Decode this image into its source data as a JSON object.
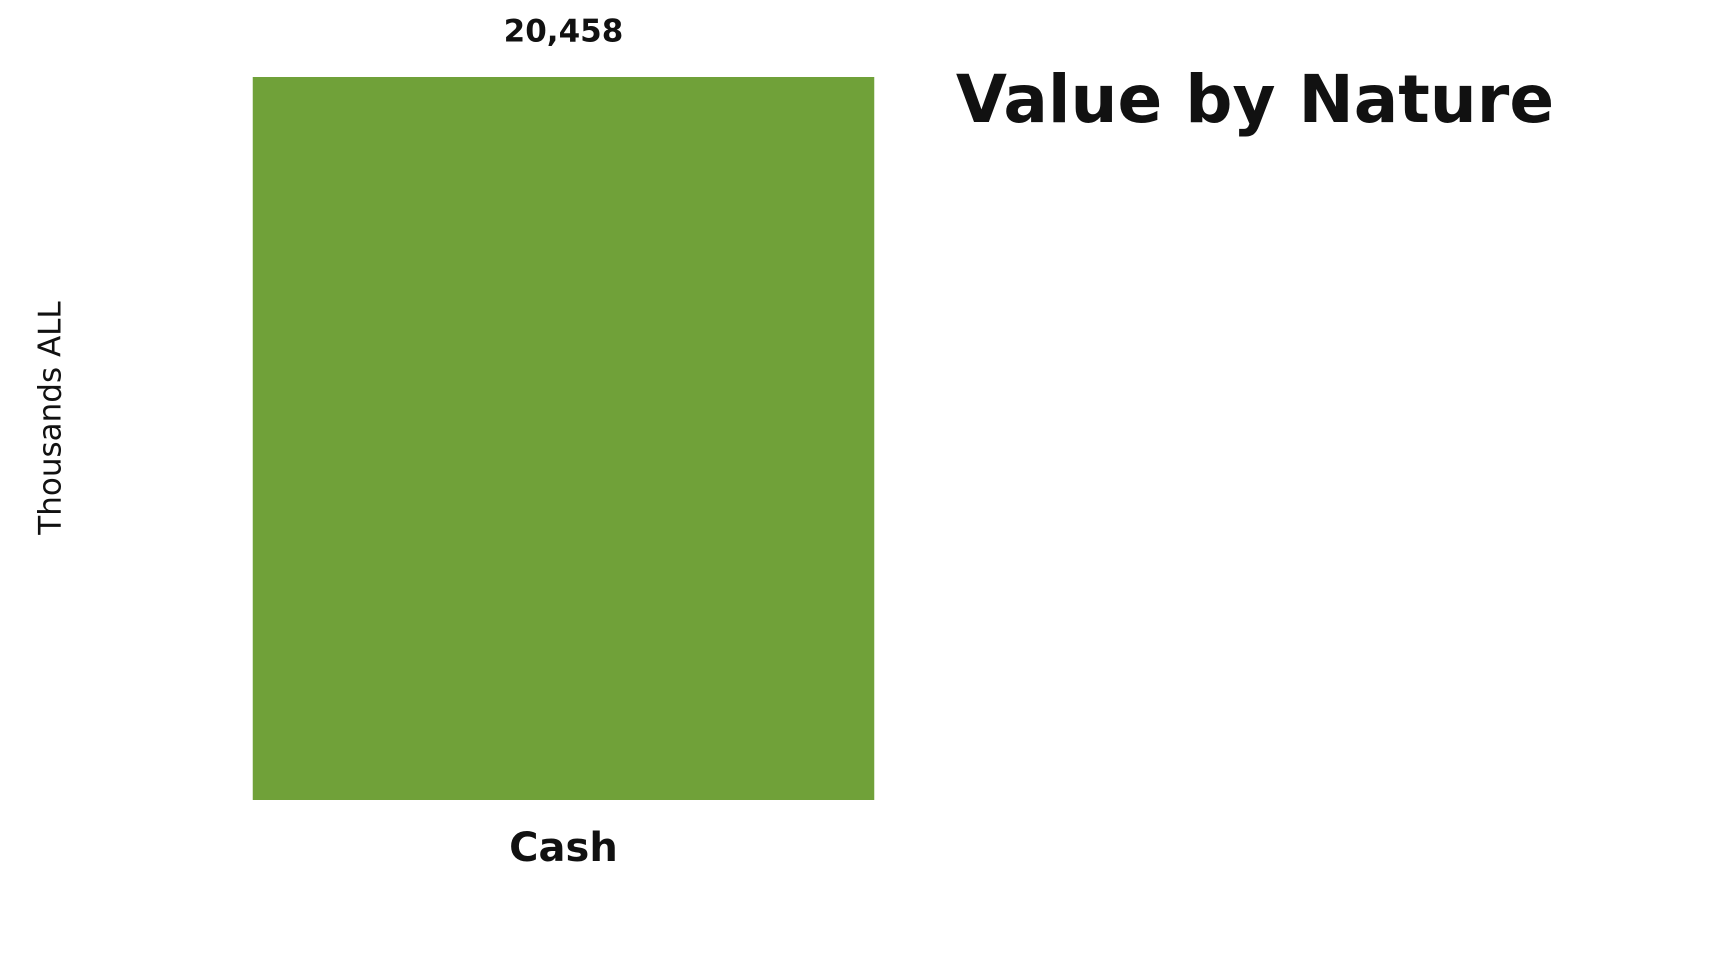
{
  "chart_data": {
    "type": "bar",
    "title": "Value by Nature",
    "y_label": "Thousands ALL",
    "categories": [
      "Cash"
    ],
    "values": [
      20458
    ],
    "value_labels": [
      "20,458"
    ],
    "color": "#70a139",
    "ylim": [
      0,
      20458
    ]
  }
}
